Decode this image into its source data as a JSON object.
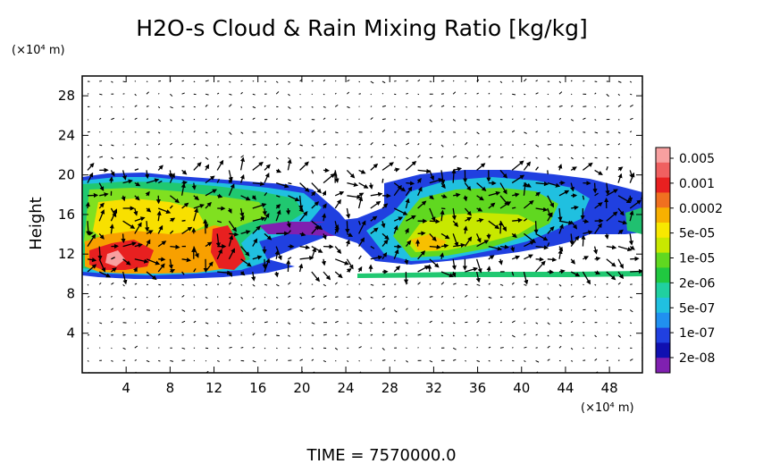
{
  "chart_data": {
    "type": "heatmap",
    "title": "H2O-s Cloud & Rain Mixing Ratio [kg/kg]",
    "ylabel": "Height",
    "x_unit": "(×10⁴ m)",
    "y_unit": "(×10⁴ m)",
    "xlim": [
      0,
      51
    ],
    "ylim": [
      0,
      30
    ],
    "x_ticks": [
      4,
      8,
      12,
      16,
      20,
      24,
      28,
      32,
      36,
      40,
      44,
      48
    ],
    "y_ticks": [
      4,
      8,
      12,
      16,
      20,
      24,
      28
    ],
    "colorbar": {
      "labels": [
        "0.005",
        "0.001",
        "0.0002",
        "5e-05",
        "1e-05",
        "2e-06",
        "5e-07",
        "1e-07",
        "2e-08"
      ],
      "colors": [
        "#f8a0a0",
        "#f06060",
        "#e82020",
        "#f07020",
        "#f8b000",
        "#f8e800",
        "#c8e800",
        "#60d820",
        "#20c840",
        "#20d0a0",
        "#20c0e0",
        "#2090f0",
        "#2040e0",
        "#1010b0",
        "#8020b0"
      ]
    },
    "features": [
      {
        "name": "left-cloud",
        "x_range": [
          0,
          23
        ],
        "y_range": [
          9.5,
          20
        ],
        "max_level": "0.005"
      },
      {
        "name": "right-cloud",
        "x_range": [
          22,
          51
        ],
        "y_range": [
          9.5,
          20
        ],
        "max_level": "0.0002"
      }
    ],
    "time_label": "TIME  =  7570000.0"
  }
}
